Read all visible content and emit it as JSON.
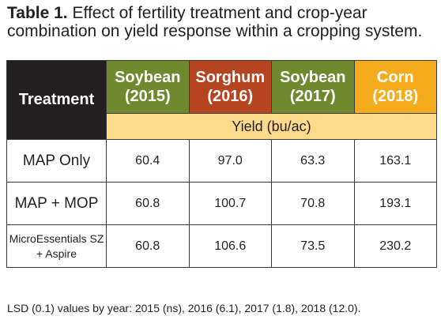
{
  "caption": {
    "label": "Table 1.",
    "line1": "Effect of fertility treatment and crop-year",
    "line2": "combination on yield response within a cropping system."
  },
  "table": {
    "treatment_header": "Treatment",
    "unit_label": "Yield (bu/ac)",
    "columns": [
      {
        "crop": "Soybean",
        "year": "(2015)",
        "color": "#6f8a2e"
      },
      {
        "crop": "Sorghum",
        "year": "(2016)",
        "color": "#b5441f"
      },
      {
        "crop": "Soybean",
        "year": "(2017)",
        "color": "#6f8a2e"
      },
      {
        "crop": "Corn",
        "year": "(2018)",
        "color": "#f5ac1c"
      }
    ],
    "rows": [
      {
        "treatment": "MAP Only",
        "values": [
          "60.4",
          "97.0",
          "63.3",
          "163.1"
        ]
      },
      {
        "treatment": "MAP + MOP",
        "values": [
          "60.8",
          "100.7",
          "70.8",
          "193.1"
        ]
      },
      {
        "treatment_line1": "MicroEssentials SZ",
        "treatment_line2": "+ Aspire",
        "values": [
          "60.8",
          "106.6",
          "73.5",
          "230.2"
        ]
      }
    ]
  },
  "footnote": "LSD (0.1) values by year: 2015 (ns), 2016 (6.1), 2017 (1.8), 2018 (12.0)."
}
